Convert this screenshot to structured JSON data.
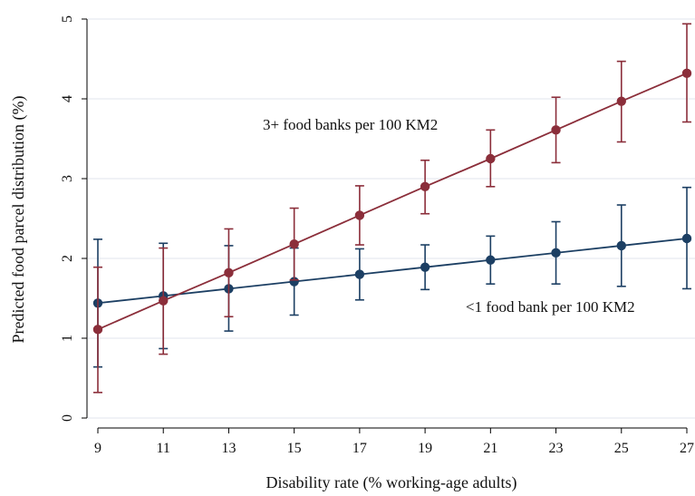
{
  "chart_data": {
    "type": "line",
    "xlabel": "Disability rate (% working-age adults)",
    "ylabel": "Predicted food parcel distribution (%)",
    "x": [
      9,
      11,
      13,
      15,
      17,
      19,
      21,
      23,
      25,
      27
    ],
    "xticks": [
      "9",
      "11",
      "13",
      "15",
      "17",
      "19",
      "21",
      "23",
      "25",
      "27"
    ],
    "yticks": [
      "0",
      "1",
      "2",
      "3",
      "4",
      "5"
    ],
    "xlim": [
      9,
      27
    ],
    "ylim": [
      0,
      5
    ],
    "grid": "horizontal",
    "legend": "none",
    "series": [
      {
        "name": "<1 food bank per 100 KM2",
        "color": "#1c3f63",
        "values": [
          1.44,
          1.53,
          1.62,
          1.71,
          1.8,
          1.89,
          1.98,
          2.07,
          2.16,
          2.25
        ],
        "ci_low": [
          0.64,
          0.87,
          1.09,
          1.29,
          1.48,
          1.61,
          1.68,
          1.68,
          1.65,
          1.62
        ],
        "ci_high": [
          2.24,
          2.19,
          2.16,
          2.13,
          2.12,
          2.17,
          2.28,
          2.46,
          2.67,
          2.89
        ]
      },
      {
        "name": "3+ food banks per 100 KM2",
        "color": "#8b2e3a",
        "values": [
          1.11,
          1.47,
          1.82,
          2.18,
          2.54,
          2.9,
          3.25,
          3.61,
          3.97,
          4.32
        ],
        "ci_low": [
          0.32,
          0.8,
          1.27,
          1.73,
          2.17,
          2.56,
          2.9,
          3.2,
          3.46,
          3.71
        ],
        "ci_high": [
          1.89,
          2.13,
          2.37,
          2.63,
          2.91,
          3.23,
          3.61,
          4.02,
          4.47,
          4.94
        ]
      }
    ],
    "annotations": [
      {
        "text": "3+ food banks per 100 KM2",
        "series": 1
      },
      {
        "text": "<1 food bank per 100 KM2",
        "series": 0
      }
    ]
  }
}
